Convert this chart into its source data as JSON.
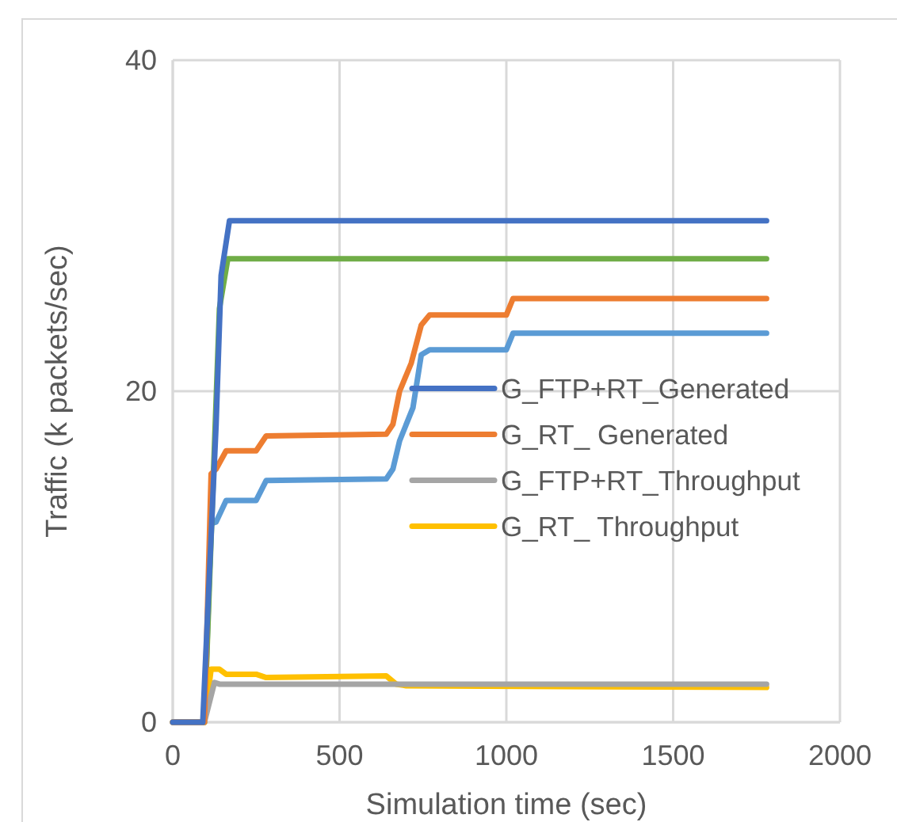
{
  "chart_data": {
    "type": "line",
    "xlabel": "Simulation time (sec)",
    "ylabel": "Traffic (k packets/sec)",
    "xlim": [
      0,
      2000
    ],
    "xticks": [
      0,
      500,
      1000,
      1500,
      2000
    ],
    "ylim": [
      0,
      40
    ],
    "yticks": [
      0,
      20,
      40
    ],
    "grid": true,
    "legend": "right",
    "marker": "none",
    "line_style": "solid",
    "series": [
      {
        "name": "G_FTP+RT_Generated",
        "color": "#4472c4",
        "x": [
          0,
          90,
          130,
          145,
          170,
          1780
        ],
        "values": [
          0,
          0,
          18,
          27,
          30.3,
          30.3
        ]
      },
      {
        "name": "G_RT_ Generated",
        "color": "#ed7d31",
        "x": [
          0,
          95,
          115,
          130,
          160,
          250,
          280,
          640,
          660,
          680,
          715,
          745,
          770,
          1000,
          1020,
          1780
        ],
        "values": [
          0,
          0,
          15,
          15.3,
          16.4,
          16.4,
          17.3,
          17.4,
          18,
          20,
          21.7,
          24,
          24.6,
          24.6,
          25.6,
          25.6
        ]
      },
      {
        "name": "G_FTP+RT_Throughput",
        "color": "#a5a5a5",
        "x": [
          0,
          95,
          125,
          140,
          1780
        ],
        "values": [
          0,
          0,
          2.4,
          2.3,
          2.3
        ]
      },
      {
        "name": "G_RT_ Throughput",
        "color": "#ffc000",
        "x": [
          0,
          95,
          115,
          140,
          160,
          250,
          280,
          640,
          670,
          700,
          1780
        ],
        "values": [
          0,
          0,
          3.2,
          3.2,
          2.9,
          2.9,
          2.7,
          2.8,
          2.3,
          2.2,
          2.1
        ]
      },
      {
        "color": "#70ad47",
        "x": [
          0,
          95,
          140,
          165,
          1780
        ],
        "values": [
          0,
          0,
          25,
          28,
          28
        ]
      },
      {
        "color": "#5b9bd5",
        "x": [
          0,
          95,
          115,
          130,
          160,
          250,
          280,
          640,
          660,
          680,
          720,
          745,
          770,
          1000,
          1020,
          1780
        ],
        "values": [
          0,
          0,
          12,
          12.1,
          13.4,
          13.4,
          14.6,
          14.7,
          15.3,
          17,
          19,
          22.2,
          22.5,
          22.5,
          23.5,
          23.5
        ]
      }
    ]
  }
}
